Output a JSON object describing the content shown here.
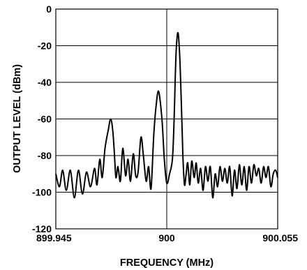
{
  "chart_data": {
    "type": "line",
    "title": "",
    "xlabel": "FREQUENCY (MHz)",
    "ylabel": "OUTPUT LEVEL (dBm)",
    "xlim": [
      899.945,
      900.055
    ],
    "ylim": [
      -120,
      0
    ],
    "x_ticks": [
      899.945,
      900,
      900.055
    ],
    "x_tick_labels": [
      "899.945",
      "900",
      "900.055"
    ],
    "y_ticks": [
      0,
      -20,
      -40,
      -60,
      -80,
      -100,
      -120
    ],
    "y_tick_labels": [
      "0",
      "-20",
      "-40",
      "-60",
      "-80",
      "-100",
      "-120"
    ],
    "grid": true,
    "series": [
      {
        "name": "",
        "color": "#000000",
        "x": [
          899.945,
          899.9468,
          899.9484,
          899.9502,
          899.9522,
          899.9542,
          899.9562,
          899.9582,
          899.9602,
          899.9622,
          899.9642,
          899.9654,
          899.9668,
          899.968,
          899.9694,
          899.971,
          899.9722,
          899.9732,
          899.974,
          899.9748,
          899.9758,
          899.977,
          899.9782,
          899.9796,
          899.9808,
          899.982,
          899.9834,
          899.9846,
          899.9858,
          899.9872,
          899.9884,
          899.9898,
          899.991,
          899.9922,
          899.9936,
          899.9948,
          899.996,
          899.9976,
          899.9988,
          900.0,
          900.0014,
          900.0028,
          900.0036,
          900.0042,
          900.0048,
          900.0056,
          900.0064,
          900.0072,
          900.008,
          900.0088,
          900.0096,
          900.0104,
          900.0114,
          900.0124,
          900.0136,
          900.0146,
          900.0156,
          900.0168,
          900.018,
          900.0192,
          900.0204,
          900.0216,
          900.0228,
          900.024,
          900.0252,
          900.0264,
          900.0276,
          900.0288,
          900.03,
          900.0312,
          900.0324,
          900.0336,
          900.0348,
          900.036,
          900.0372,
          900.0384,
          900.0396,
          900.0408,
          900.042,
          900.0432,
          900.0444,
          900.0456,
          900.0468,
          900.048,
          900.0492,
          900.0504,
          900.0516,
          900.0528,
          900.054,
          900.055
        ],
        "y": [
          -90,
          -97,
          -88,
          -99,
          -88,
          -103,
          -88,
          -101,
          -89,
          -97,
          -87,
          -96,
          -82,
          -92,
          -76,
          -66,
          -60,
          -66,
          -78,
          -92,
          -86,
          -94,
          -76,
          -91,
          -82,
          -94,
          -79,
          -91,
          -89,
          -70,
          -80,
          -94,
          -86,
          -98,
          -68,
          -52,
          -45,
          -60,
          -82,
          -95,
          -90,
          -82,
          -62,
          -38,
          -20,
          -13,
          -25,
          -50,
          -80,
          -96,
          -90,
          -84,
          -96,
          -83,
          -92,
          -84,
          -95,
          -87,
          -99,
          -86,
          -94,
          -86,
          -103,
          -90,
          -97,
          -86,
          -94,
          -87,
          -95,
          -86,
          -102,
          -88,
          -98,
          -85,
          -96,
          -86,
          -99,
          -86,
          -95,
          -85,
          -91,
          -87,
          -95,
          -86,
          -92,
          -86,
          -97,
          -90,
          -88,
          -92
        ]
      }
    ]
  }
}
